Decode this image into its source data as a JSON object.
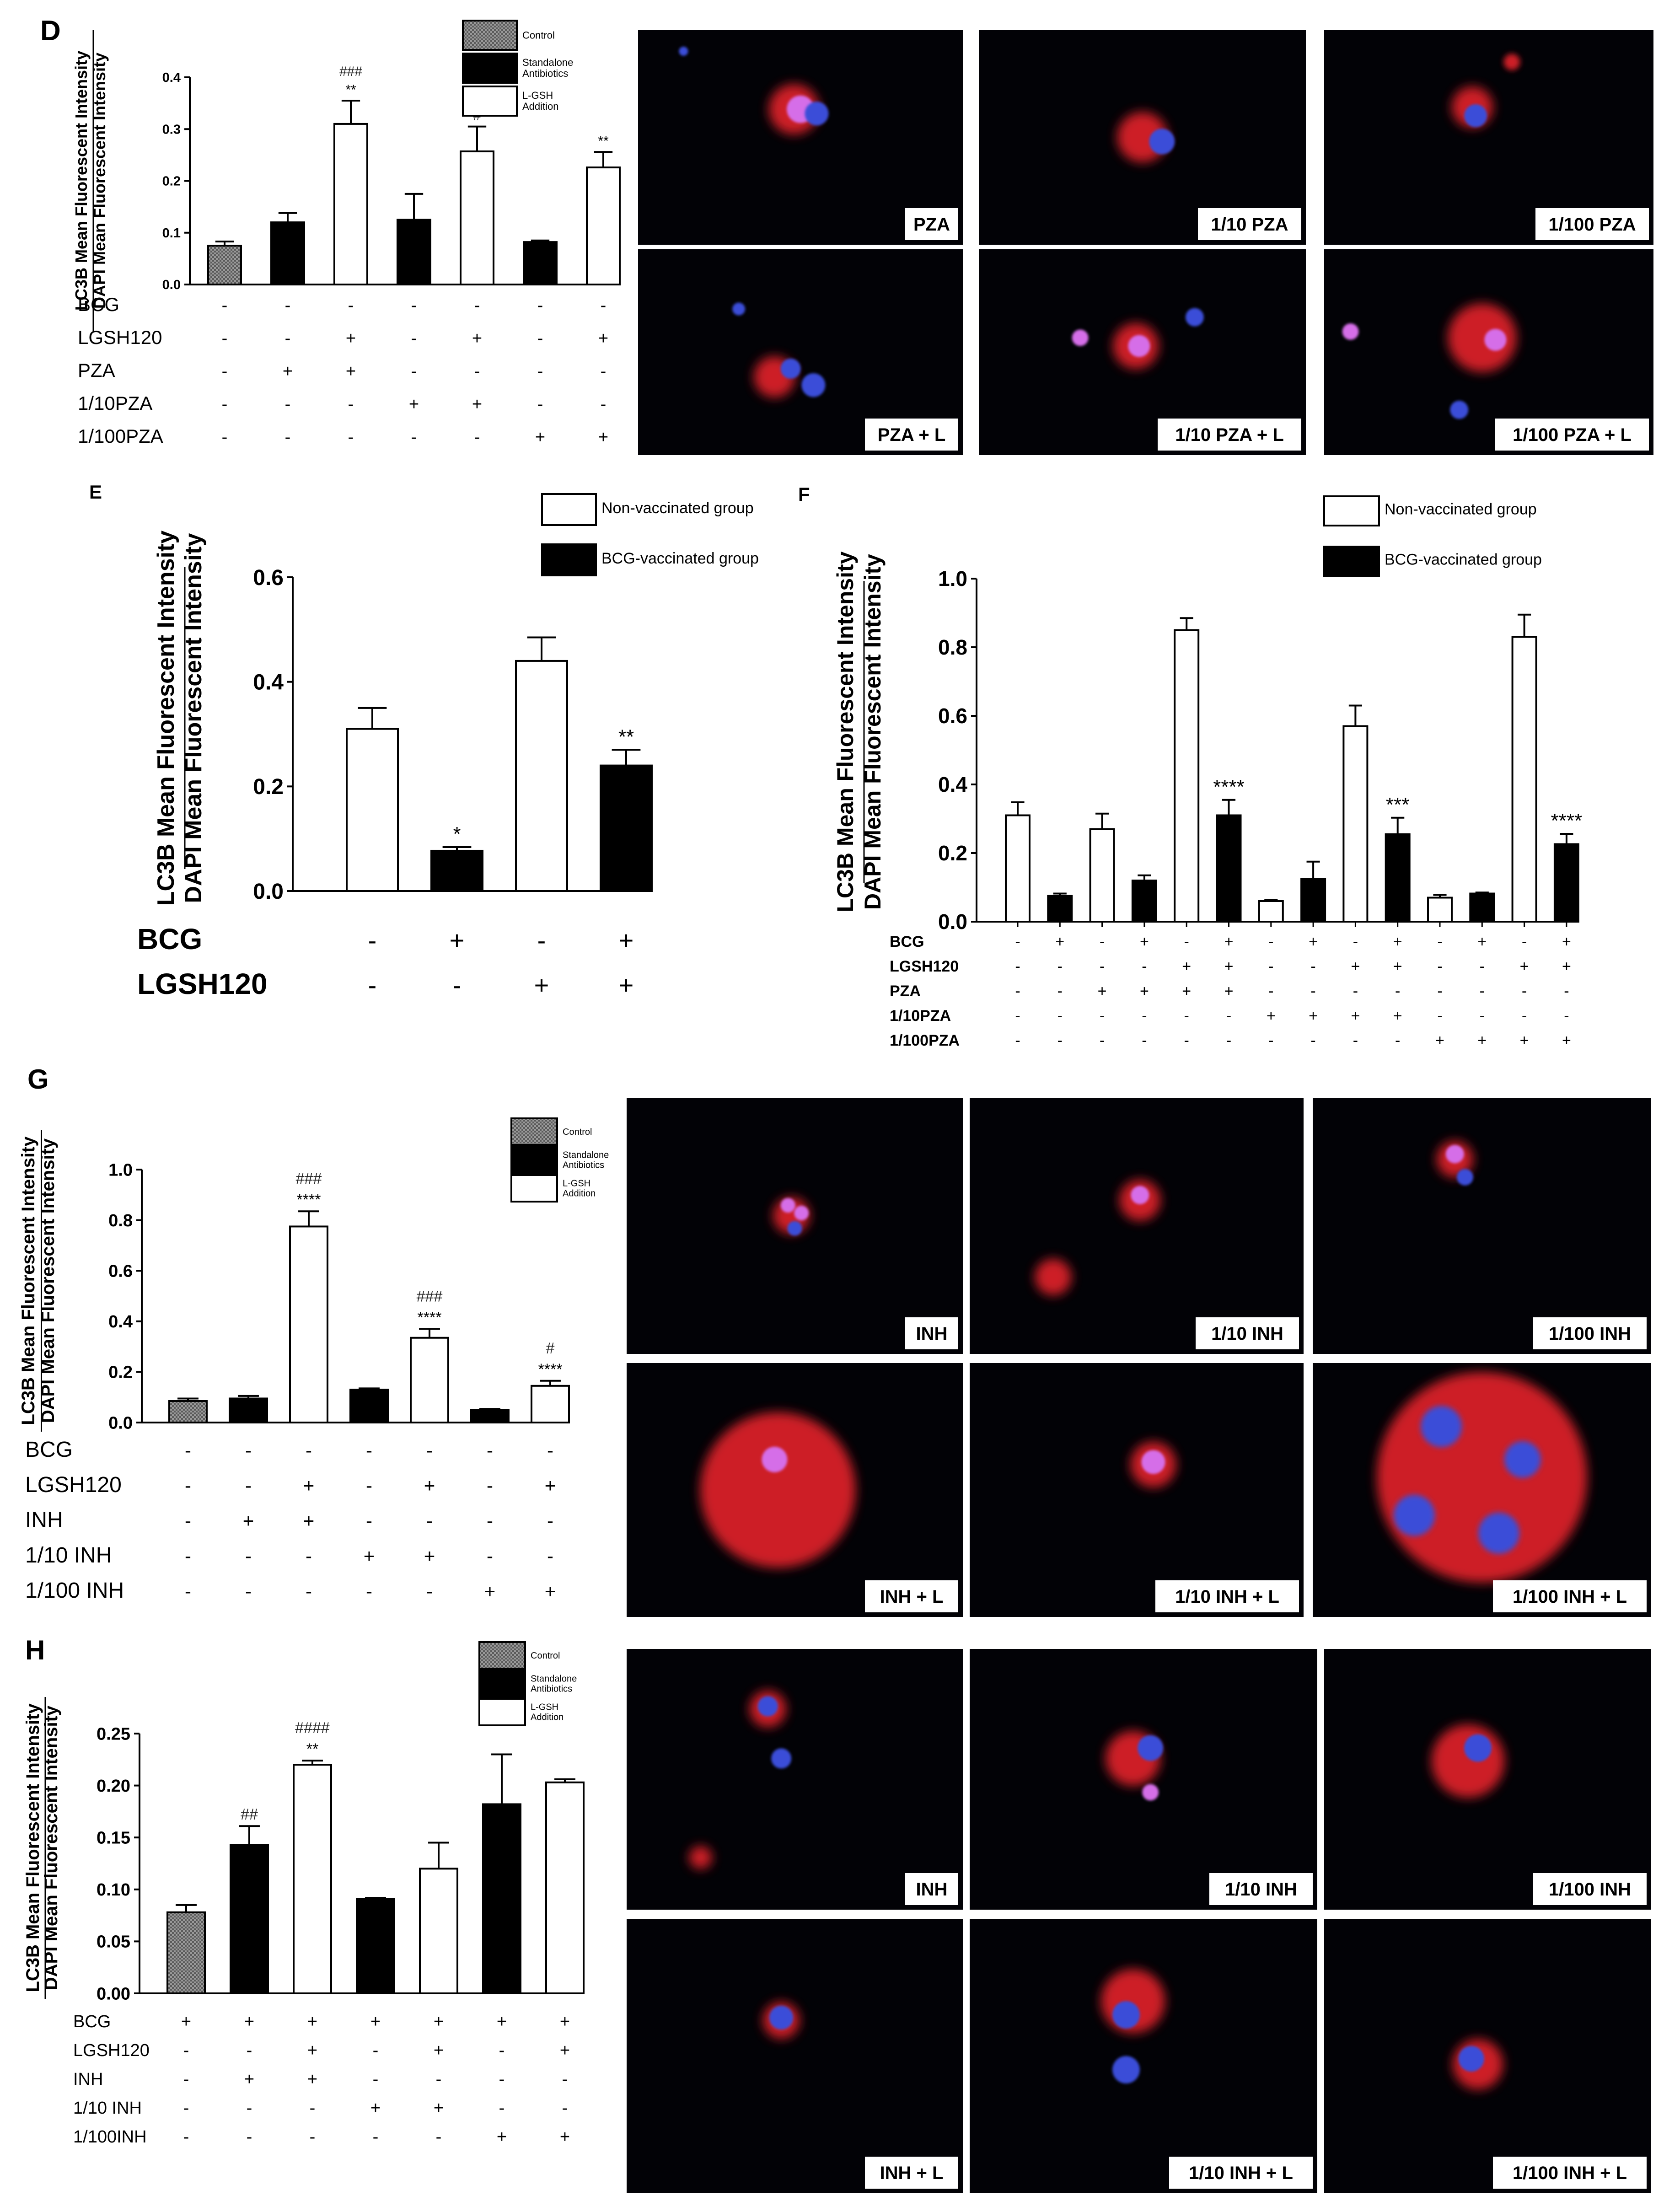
{
  "colors": {
    "white_bar": "#ffffff",
    "black_bar": "#000000",
    "control_fill": "#9a9a9a",
    "micro_bg": "#020206",
    "cell_red": "#e3202a",
    "nucleus_blue": "#3a4ed8",
    "nucleus_magenta": "#d56ee8"
  },
  "chart_data": [
    {
      "id": "D",
      "panel_label": "D",
      "type": "bar",
      "ylabel_top": "LC3B Mean Fluorescent Intensity",
      "ylabel_bottom": "DAPI Mean Fluorescent Intensity",
      "ylim": [
        0,
        0.4
      ],
      "yticks": [
        "0.0",
        "0.1",
        "0.2",
        "0.3",
        "0.4"
      ],
      "legend_position": "top-right",
      "legend": [
        "Control",
        "Standalone Antibiotics",
        "L-GSH Addition"
      ],
      "bars": [
        {
          "group": "control",
          "value": 0.075,
          "err": 0.008,
          "sig": []
        },
        {
          "group": "standalone",
          "value": 0.12,
          "err": 0.018,
          "sig": []
        },
        {
          "group": "lgsh",
          "value": 0.31,
          "err": 0.045,
          "sig": [
            "###",
            "**"
          ]
        },
        {
          "group": "standalone",
          "value": 0.125,
          "err": 0.05,
          "sig": []
        },
        {
          "group": "lgsh",
          "value": 0.257,
          "err": 0.048,
          "sig": [
            "#"
          ]
        },
        {
          "group": "standalone",
          "value": 0.082,
          "err": 0.003,
          "sig": []
        },
        {
          "group": "lgsh",
          "value": 0.226,
          "err": 0.03,
          "sig": [
            "**"
          ]
        }
      ],
      "conditions": [
        {
          "label": "BCG",
          "marks": [
            "-",
            "-",
            "-",
            "-",
            "-",
            "-",
            "-"
          ]
        },
        {
          "label": "LGSH120",
          "marks": [
            "-",
            "-",
            "+",
            "-",
            "+",
            "-",
            "+"
          ]
        },
        {
          "label": "PZA",
          "marks": [
            "-",
            "+",
            "+",
            "-",
            "-",
            "-",
            "-"
          ]
        },
        {
          "label": "1/10PZA",
          "marks": [
            "-",
            "-",
            "-",
            "+",
            "+",
            "-",
            "-"
          ]
        },
        {
          "label": "1/100PZA",
          "marks": [
            "-",
            "-",
            "-",
            "-",
            "-",
            "+",
            "+"
          ]
        }
      ]
    },
    {
      "id": "E",
      "panel_label": "E",
      "type": "bar",
      "ylabel_top": "LC3B Mean Fluorescent Intensity",
      "ylabel_bottom": "DAPI Mean Fluorescent Intensity",
      "ylim": [
        0,
        0.6
      ],
      "yticks": [
        "0.0",
        "0.2",
        "0.4",
        "0.6"
      ],
      "legend_position": "top-right",
      "legend": [
        "Non-vaccinated group",
        "BCG-vaccinated group"
      ],
      "bars": [
        {
          "group": "nonvacc",
          "value": 0.31,
          "err": 0.04,
          "sig": []
        },
        {
          "group": "bcg",
          "value": 0.077,
          "err": 0.007,
          "sig": [
            "*"
          ]
        },
        {
          "group": "nonvacc",
          "value": 0.44,
          "err": 0.045,
          "sig": []
        },
        {
          "group": "bcg",
          "value": 0.24,
          "err": 0.03,
          "sig": [
            "**"
          ]
        }
      ],
      "conditions": [
        {
          "label": "BCG",
          "marks": [
            "-",
            "+",
            "-",
            "+"
          ]
        },
        {
          "label": "LGSH120",
          "marks": [
            "-",
            "-",
            "+",
            "+"
          ]
        }
      ]
    },
    {
      "id": "F",
      "panel_label": "F",
      "type": "bar",
      "ylabel_top": "LC3B Mean Fluorescent Intensity",
      "ylabel_bottom": "DAPI Mean Fluorescent Intensity",
      "ylim": [
        0,
        1.0
      ],
      "yticks": [
        "0.0",
        "0.2",
        "0.4",
        "0.6",
        "0.8",
        "1.0"
      ],
      "legend_position": "top-right",
      "legend": [
        "Non-vaccinated group",
        "BCG-vaccinated group"
      ],
      "bars": [
        {
          "group": "nonvacc",
          "value": 0.31,
          "err": 0.038,
          "sig": []
        },
        {
          "group": "bcg",
          "value": 0.075,
          "err": 0.007,
          "sig": []
        },
        {
          "group": "nonvacc",
          "value": 0.27,
          "err": 0.045,
          "sig": []
        },
        {
          "group": "bcg",
          "value": 0.12,
          "err": 0.015,
          "sig": []
        },
        {
          "group": "nonvacc",
          "value": 0.85,
          "err": 0.035,
          "sig": []
        },
        {
          "group": "bcg",
          "value": 0.31,
          "err": 0.045,
          "sig": [
            "****"
          ]
        },
        {
          "group": "nonvacc",
          "value": 0.06,
          "err": 0.004,
          "sig": []
        },
        {
          "group": "bcg",
          "value": 0.125,
          "err": 0.05,
          "sig": []
        },
        {
          "group": "nonvacc",
          "value": 0.57,
          "err": 0.06,
          "sig": []
        },
        {
          "group": "bcg",
          "value": 0.255,
          "err": 0.048,
          "sig": [
            "***"
          ]
        },
        {
          "group": "nonvacc",
          "value": 0.07,
          "err": 0.008,
          "sig": []
        },
        {
          "group": "bcg",
          "value": 0.082,
          "err": 0.003,
          "sig": []
        },
        {
          "group": "nonvacc",
          "value": 0.83,
          "err": 0.065,
          "sig": []
        },
        {
          "group": "bcg",
          "value": 0.226,
          "err": 0.03,
          "sig": [
            "****"
          ]
        }
      ],
      "conditions": [
        {
          "label": "BCG",
          "marks": [
            "-",
            "+",
            "-",
            "+",
            "-",
            "+",
            "-",
            "+",
            "-",
            "+",
            "-",
            "+",
            "-",
            "+"
          ]
        },
        {
          "label": "LGSH120",
          "marks": [
            "-",
            "-",
            "-",
            "-",
            "+",
            "+",
            "-",
            "-",
            "+",
            "+",
            "-",
            "-",
            "+",
            "+"
          ]
        },
        {
          "label": "PZA",
          "marks": [
            "-",
            "-",
            "+",
            "+",
            "+",
            "+",
            "-",
            "-",
            "-",
            "-",
            "-",
            "-",
            "-",
            "-"
          ]
        },
        {
          "label": "1/10PZA",
          "marks": [
            "-",
            "-",
            "-",
            "-",
            "-",
            "-",
            "+",
            "+",
            "+",
            "+",
            "-",
            "-",
            "-",
            "-"
          ]
        },
        {
          "label": "1/100PZA",
          "marks": [
            "-",
            "-",
            "-",
            "-",
            "-",
            "-",
            "-",
            "-",
            "-",
            "-",
            "+",
            "+",
            "+",
            "+"
          ]
        }
      ]
    },
    {
      "id": "G",
      "panel_label": "G",
      "type": "bar",
      "ylabel_top": "LC3B Mean Fluorescent Intensity",
      "ylabel_bottom": "DAPI Mean Fluorescent Intensity",
      "ylim": [
        0,
        1.0
      ],
      "yticks": [
        "0.0",
        "0.2",
        "0.4",
        "0.6",
        "0.8",
        "1.0"
      ],
      "legend_position": "top-right",
      "legend": [
        "Control",
        "Standalone Antibiotics",
        "L-GSH Addition"
      ],
      "bars": [
        {
          "group": "control",
          "value": 0.085,
          "err": 0.01,
          "sig": []
        },
        {
          "group": "standalone",
          "value": 0.095,
          "err": 0.01,
          "sig": []
        },
        {
          "group": "lgsh",
          "value": 0.775,
          "err": 0.06,
          "sig": [
            "###",
            "****"
          ]
        },
        {
          "group": "standalone",
          "value": 0.13,
          "err": 0.005,
          "sig": []
        },
        {
          "group": "lgsh",
          "value": 0.335,
          "err": 0.035,
          "sig": [
            "###",
            "****"
          ]
        },
        {
          "group": "standalone",
          "value": 0.05,
          "err": 0.004,
          "sig": []
        },
        {
          "group": "lgsh",
          "value": 0.145,
          "err": 0.02,
          "sig": [
            "#",
            "****"
          ]
        }
      ],
      "conditions": [
        {
          "label": "BCG",
          "marks": [
            "-",
            "-",
            "-",
            "-",
            "-",
            "-",
            "-"
          ]
        },
        {
          "label": "LGSH120",
          "marks": [
            "-",
            "-",
            "+",
            "-",
            "+",
            "-",
            "+"
          ]
        },
        {
          "label": "INH",
          "marks": [
            "-",
            "+",
            "+",
            "-",
            "-",
            "-",
            "-"
          ]
        },
        {
          "label": "1/10 INH",
          "marks": [
            "-",
            "-",
            "-",
            "+",
            "+",
            "-",
            "-"
          ]
        },
        {
          "label": "1/100 INH",
          "marks": [
            "-",
            "-",
            "-",
            "-",
            "-",
            "+",
            "+"
          ]
        }
      ]
    },
    {
      "id": "H",
      "panel_label": "H",
      "type": "bar",
      "ylabel_top": "LC3B Mean Fluorescent Intensity",
      "ylabel_bottom": "DAPI Mean Fluorescent Intensity",
      "ylim": [
        0,
        0.25
      ],
      "yticks": [
        "0.00",
        "0.05",
        "0.10",
        "0.15",
        "0.20",
        "0.25"
      ],
      "legend_position": "top-right",
      "legend": [
        "Control",
        "Standalone Antibiotics",
        "L-GSH Addition"
      ],
      "bars": [
        {
          "group": "control",
          "value": 0.078,
          "err": 0.007,
          "sig": []
        },
        {
          "group": "standalone",
          "value": 0.143,
          "err": 0.018,
          "sig": [
            "##"
          ]
        },
        {
          "group": "lgsh",
          "value": 0.22,
          "err": 0.004,
          "sig": [
            "####",
            "**"
          ]
        },
        {
          "group": "standalone",
          "value": 0.091,
          "err": 0.001,
          "sig": []
        },
        {
          "group": "lgsh",
          "value": 0.12,
          "err": 0.025,
          "sig": []
        },
        {
          "group": "standalone",
          "value": 0.182,
          "err": 0.048,
          "sig": []
        },
        {
          "group": "lgsh",
          "value": 0.203,
          "err": 0.003,
          "sig": []
        }
      ],
      "conditions": [
        {
          "label": "BCG",
          "marks": [
            "+",
            "+",
            "+",
            "+",
            "+",
            "+",
            "+"
          ]
        },
        {
          "label": "LGSH120",
          "marks": [
            "-",
            "-",
            "+",
            "-",
            "+",
            "-",
            "+"
          ]
        },
        {
          "label": "INH",
          "marks": [
            "-",
            "+",
            "+",
            "-",
            "-",
            "-",
            "-"
          ]
        },
        {
          "label": "1/10 INH",
          "marks": [
            "-",
            "-",
            "-",
            "+",
            "+",
            "-",
            "-"
          ]
        },
        {
          "label": "1/100INH",
          "marks": [
            "-",
            "-",
            "-",
            "-",
            "-",
            "+",
            "+"
          ]
        }
      ]
    }
  ],
  "micrographs": {
    "D": [
      "PZA",
      "1/10 PZA",
      "1/100 PZA",
      "PZA + L",
      "1/10 PZA + L",
      "1/100 PZA + L"
    ],
    "G": [
      "INH",
      "1/10 INH",
      "1/100 INH",
      "INH + L",
      "1/10 INH + L",
      "1/100 INH + L"
    ],
    "H": [
      "INH",
      "1/10 INH",
      "1/100 INH",
      "INH + L",
      "1/10 INH + L",
      "1/100 INH + L"
    ]
  }
}
